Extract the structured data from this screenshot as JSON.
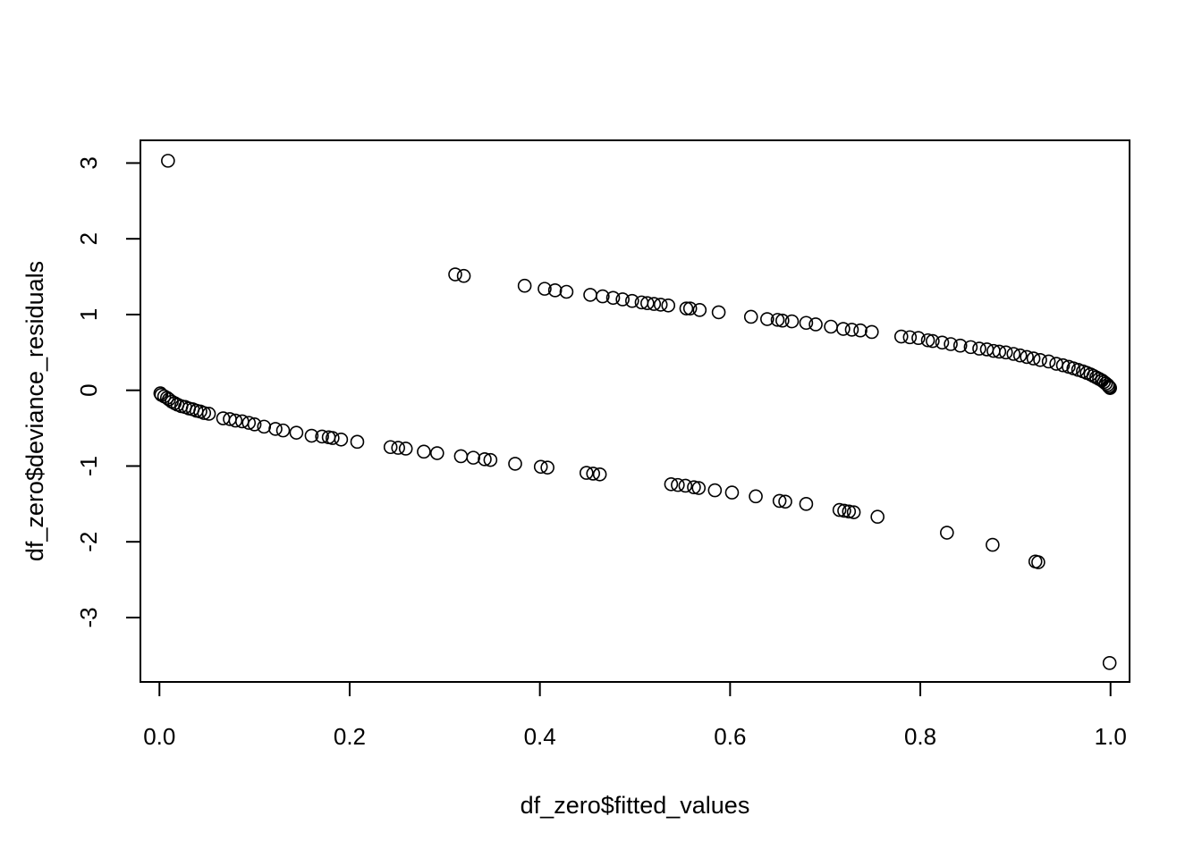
{
  "chart_data": {
    "type": "scatter",
    "title": "",
    "xlabel": "df_zero$fitted_values",
    "ylabel": "df_zero$deviance_residuals",
    "xlim": [
      -0.02,
      1.02
    ],
    "ylim": [
      -3.85,
      3.3
    ],
    "x_ticks": [
      0.0,
      0.2,
      0.4,
      0.6,
      0.8,
      1.0
    ],
    "x_tick_labels": [
      "0.0",
      "0.2",
      "0.4",
      "0.6",
      "0.8",
      "1.0"
    ],
    "y_ticks": [
      3,
      2,
      1,
      0,
      -1,
      -2,
      -3
    ],
    "y_tick_labels": [
      "3",
      "2",
      "1",
      "0",
      "-1",
      "-2",
      "-3"
    ],
    "grid": false,
    "legend": "none",
    "marker": "open-circle",
    "points": [
      [
        0.009,
        3.03
      ],
      [
        0.311,
        1.53
      ],
      [
        0.32,
        1.51
      ],
      [
        0.384,
        1.38
      ],
      [
        0.405,
        1.34
      ],
      [
        0.416,
        1.32
      ],
      [
        0.428,
        1.3
      ],
      [
        0.453,
        1.26
      ],
      [
        0.466,
        1.24
      ],
      [
        0.477,
        1.22
      ],
      [
        0.487,
        1.2
      ],
      [
        0.497,
        1.18
      ],
      [
        0.507,
        1.16
      ],
      [
        0.513,
        1.15
      ],
      [
        0.52,
        1.14
      ],
      [
        0.527,
        1.13
      ],
      [
        0.535,
        1.12
      ],
      [
        0.554,
        1.08
      ],
      [
        0.558,
        1.08
      ],
      [
        0.568,
        1.06
      ],
      [
        0.588,
        1.03
      ],
      [
        0.622,
        0.97
      ],
      [
        0.639,
        0.94
      ],
      [
        0.65,
        0.93
      ],
      [
        0.655,
        0.92
      ],
      [
        0.665,
        0.91
      ],
      [
        0.68,
        0.89
      ],
      [
        0.69,
        0.87
      ],
      [
        0.706,
        0.84
      ],
      [
        0.719,
        0.81
      ],
      [
        0.728,
        0.8
      ],
      [
        0.737,
        0.79
      ],
      [
        0.749,
        0.77
      ],
      [
        0.78,
        0.71
      ],
      [
        0.789,
        0.7
      ],
      [
        0.798,
        0.69
      ],
      [
        0.808,
        0.66
      ],
      [
        0.813,
        0.65
      ],
      [
        0.823,
        0.63
      ],
      [
        0.832,
        0.61
      ],
      [
        0.842,
        0.59
      ],
      [
        0.853,
        0.57
      ],
      [
        0.862,
        0.55
      ],
      [
        0.87,
        0.54
      ],
      [
        0.877,
        0.52
      ],
      [
        0.883,
        0.51
      ],
      [
        0.89,
        0.5
      ],
      [
        0.898,
        0.48
      ],
      [
        0.905,
        0.46
      ],
      [
        0.912,
        0.44
      ],
      [
        0.919,
        0.42
      ],
      [
        0.926,
        0.4
      ],
      [
        0.935,
        0.38
      ],
      [
        0.943,
        0.35
      ],
      [
        0.95,
        0.33
      ],
      [
        0.956,
        0.31
      ],
      [
        0.961,
        0.29
      ],
      [
        0.966,
        0.27
      ],
      [
        0.971,
        0.25
      ],
      [
        0.975,
        0.23
      ],
      [
        0.979,
        0.21
      ],
      [
        0.982,
        0.19
      ],
      [
        0.985,
        0.17
      ],
      [
        0.988,
        0.15
      ],
      [
        0.991,
        0.13
      ],
      [
        0.993,
        0.11
      ],
      [
        0.995,
        0.09
      ],
      [
        0.997,
        0.07
      ],
      [
        0.998,
        0.05
      ],
      [
        0.999,
        0.04
      ],
      [
        0.9995,
        0.03
      ],
      [
        0.001,
        -0.04
      ],
      [
        0.002,
        -0.06
      ],
      [
        0.005,
        -0.08
      ],
      [
        0.008,
        -0.1
      ],
      [
        0.01,
        -0.12
      ],
      [
        0.013,
        -0.15
      ],
      [
        0.016,
        -0.17
      ],
      [
        0.019,
        -0.19
      ],
      [
        0.023,
        -0.21
      ],
      [
        0.027,
        -0.22
      ],
      [
        0.031,
        -0.24
      ],
      [
        0.035,
        -0.25
      ],
      [
        0.039,
        -0.27
      ],
      [
        0.043,
        -0.28
      ],
      [
        0.047,
        -0.3
      ],
      [
        0.052,
        -0.31
      ],
      [
        0.067,
        -0.37
      ],
      [
        0.074,
        -0.38
      ],
      [
        0.08,
        -0.4
      ],
      [
        0.087,
        -0.41
      ],
      [
        0.094,
        -0.43
      ],
      [
        0.1,
        -0.45
      ],
      [
        0.11,
        -0.48
      ],
      [
        0.122,
        -0.51
      ],
      [
        0.13,
        -0.53
      ],
      [
        0.144,
        -0.56
      ],
      [
        0.16,
        -0.6
      ],
      [
        0.171,
        -0.61
      ],
      [
        0.178,
        -0.62
      ],
      [
        0.182,
        -0.63
      ],
      [
        0.191,
        -0.65
      ],
      [
        0.208,
        -0.68
      ],
      [
        0.243,
        -0.75
      ],
      [
        0.251,
        -0.76
      ],
      [
        0.259,
        -0.77
      ],
      [
        0.278,
        -0.81
      ],
      [
        0.292,
        -0.83
      ],
      [
        0.317,
        -0.87
      ],
      [
        0.33,
        -0.89
      ],
      [
        0.342,
        -0.91
      ],
      [
        0.348,
        -0.92
      ],
      [
        0.374,
        -0.97
      ],
      [
        0.401,
        -1.01
      ],
      [
        0.408,
        -1.02
      ],
      [
        0.449,
        -1.09
      ],
      [
        0.456,
        -1.1
      ],
      [
        0.463,
        -1.11
      ],
      [
        0.538,
        -1.24
      ],
      [
        0.545,
        -1.25
      ],
      [
        0.553,
        -1.26
      ],
      [
        0.562,
        -1.28
      ],
      [
        0.567,
        -1.29
      ],
      [
        0.584,
        -1.32
      ],
      [
        0.602,
        -1.35
      ],
      [
        0.627,
        -1.4
      ],
      [
        0.652,
        -1.46
      ],
      [
        0.658,
        -1.47
      ],
      [
        0.68,
        -1.5
      ],
      [
        0.715,
        -1.58
      ],
      [
        0.72,
        -1.59
      ],
      [
        0.725,
        -1.6
      ],
      [
        0.73,
        -1.61
      ],
      [
        0.755,
        -1.67
      ],
      [
        0.828,
        -1.88
      ],
      [
        0.876,
        -2.04
      ],
      [
        0.921,
        -2.26
      ],
      [
        0.924,
        -2.27
      ],
      [
        0.999,
        -3.6
      ]
    ]
  }
}
